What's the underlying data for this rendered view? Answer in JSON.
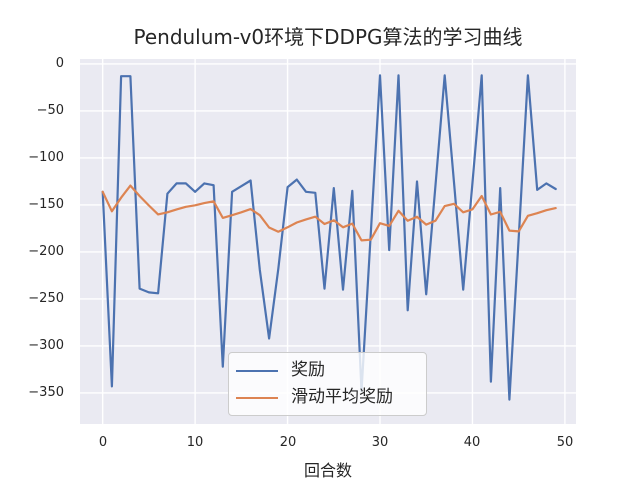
{
  "title": "Pendulum-v0环境下DDPG算法的学习曲线",
  "chart_data": {
    "type": "line",
    "title": "Pendulum-v0环境下DDPG算法的学习曲线",
    "xlabel": "回合数",
    "ylabel": "",
    "grid": true,
    "legend_position": "lower center",
    "x": [
      0,
      1,
      2,
      3,
      4,
      5,
      6,
      7,
      8,
      9,
      10,
      11,
      12,
      13,
      14,
      15,
      16,
      17,
      18,
      19,
      20,
      21,
      22,
      23,
      24,
      25,
      26,
      27,
      28,
      29,
      30,
      31,
      32,
      33,
      34,
      35,
      36,
      37,
      38,
      39,
      40,
      41,
      42,
      43,
      44,
      45,
      46,
      47,
      48,
      49
    ],
    "series": [
      {
        "name": "奖励",
        "color": "#4C72B0",
        "values": [
          -136,
          -343,
          -13,
          -13,
          -239,
          -243,
          -244,
          -138,
          -127,
          -127,
          -136,
          -127,
          -129,
          -322,
          -136,
          -130,
          -124,
          -219,
          -292,
          -218,
          -131,
          -123,
          -136,
          -137,
          -239,
          -132,
          -240,
          -135,
          -348,
          -180,
          -12,
          -198,
          -12,
          -262,
          -125,
          -245,
          -129,
          -12,
          -126,
          -240,
          -126,
          -12,
          -338,
          -132,
          -357,
          -185,
          -12,
          -134,
          -127,
          -133
        ]
      },
      {
        "name": "滑动平均奖励",
        "color": "#DD8452",
        "values": [
          -136.0,
          -156.7,
          -142.3,
          -129.4,
          -140.4,
          -150.6,
          -160.0,
          -157.8,
          -154.7,
          -151.9,
          -150.3,
          -148.0,
          -146.1,
          -163.7,
          -160.9,
          -157.8,
          -154.4,
          -160.9,
          -174.0,
          -178.4,
          -173.7,
          -168.6,
          -165.3,
          -162.5,
          -170.2,
          -166.3,
          -173.7,
          -169.8,
          -187.7,
          -186.9,
          -169.4,
          -172.3,
          -156.2,
          -166.8,
          -162.6,
          -170.9,
          -166.7,
          -151.2,
          -148.7,
          -157.8,
          -154.6,
          -140.4,
          -160.1,
          -157.3,
          -177.3,
          -178.1,
          -161.5,
          -158.7,
          -155.5,
          -153.3
        ]
      }
    ],
    "xlim": [
      -2.45,
      51.2
    ],
    "ylim": [
      -383,
      5.3
    ],
    "x_ticks": {
      "values": [
        0,
        10,
        20,
        30,
        40,
        50
      ],
      "labels": [
        "0",
        "10",
        "20",
        "30",
        "40",
        "50"
      ]
    },
    "y_ticks": {
      "values": [
        0,
        -50,
        -100,
        -150,
        -200,
        -250,
        -300,
        -350
      ],
      "labels": [
        "0",
        "−50",
        "−100",
        "−150",
        "−200",
        "−250",
        "−300",
        "−350"
      ]
    },
    "colors": {
      "plot_background": "#EAEAF2",
      "grid": "#FFFFFF",
      "text": "#262626",
      "legend_border": "#CCCCCC"
    }
  }
}
